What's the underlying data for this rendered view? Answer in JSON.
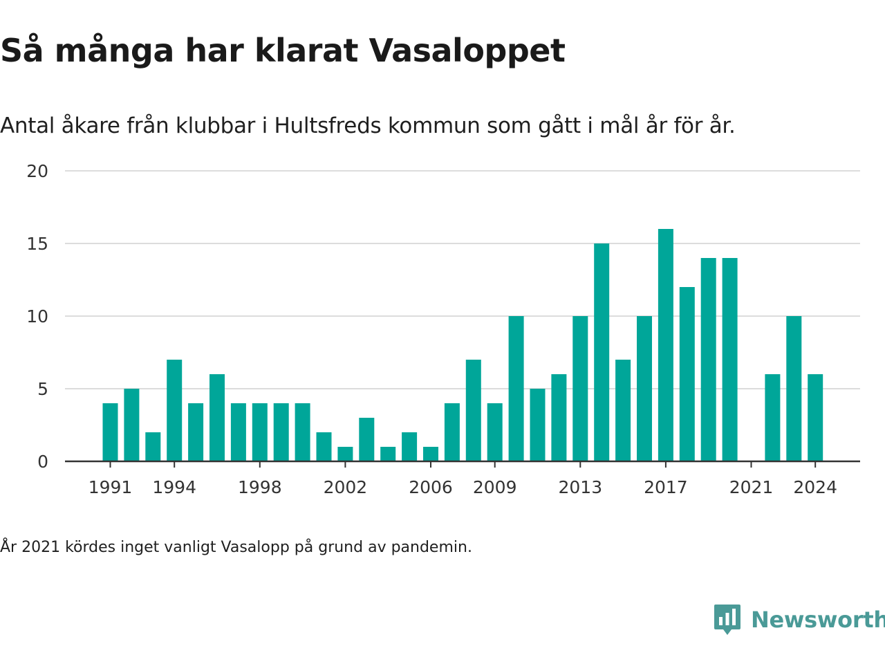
{
  "header": {
    "title": "Så många har klarat Vasaloppet",
    "subtitle": "Antal åkare från klubbar i Hultsfreds kommun som gått i mål år för år."
  },
  "footer": {
    "note": "År 2021 kördes inget vanligt Vasalopp på grund av pandemin.",
    "brand": "Newsworthy",
    "brand_icon": "newsworthy-logo-icon"
  },
  "colors": {
    "bar": "#00a699",
    "grid": "#dcdcdc",
    "axis": "#333333",
    "brand": "#4a9a97"
  },
  "chart_data": {
    "type": "bar",
    "title": "Så många har klarat Vasaloppet",
    "subtitle": "Antal åkare från klubbar i Hultsfreds kommun som gått i mål år för år.",
    "xlabel": "",
    "ylabel": "",
    "x": [
      1991,
      1992,
      1993,
      1994,
      1995,
      1996,
      1997,
      1998,
      1999,
      2000,
      2001,
      2002,
      2003,
      2004,
      2005,
      2006,
      2007,
      2008,
      2009,
      2010,
      2011,
      2012,
      2013,
      2014,
      2015,
      2016,
      2017,
      2018,
      2019,
      2020,
      2021,
      2022,
      2023,
      2024
    ],
    "values": [
      4,
      5,
      2,
      7,
      4,
      6,
      4,
      4,
      4,
      4,
      2,
      1,
      3,
      1,
      2,
      1,
      4,
      7,
      4,
      10,
      5,
      6,
      10,
      15,
      7,
      10,
      16,
      12,
      14,
      14,
      null,
      6,
      10,
      6
    ],
    "xticks": [
      1991,
      1994,
      1998,
      2002,
      2006,
      2009,
      2013,
      2017,
      2021,
      2024
    ],
    "ylim": [
      0,
      20
    ],
    "yticks": [
      0,
      5,
      10,
      15,
      20
    ],
    "grid": true,
    "legend": "none"
  }
}
